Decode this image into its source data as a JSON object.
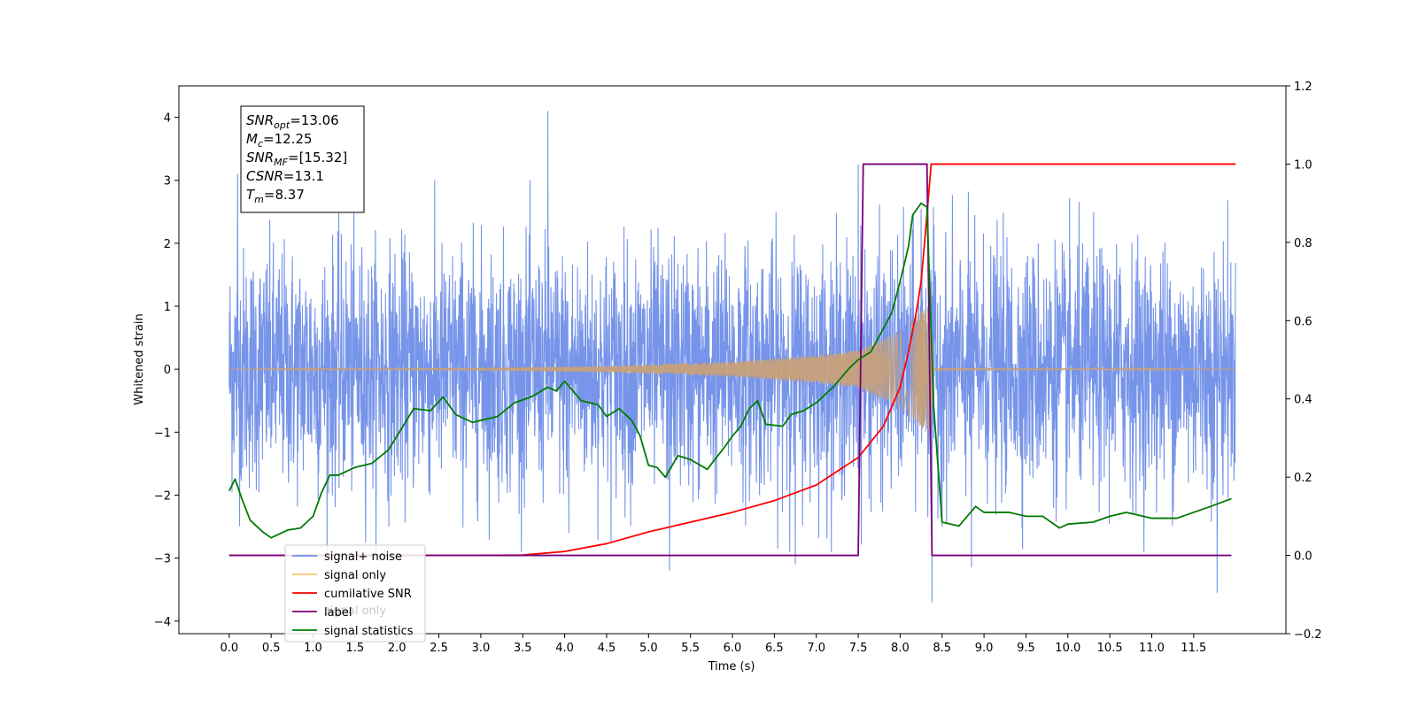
{
  "chart_data": {
    "type": "line",
    "xlabel": "Time (s)",
    "ylabel": "Whitened strain",
    "xlim": [
      -0.6,
      12.6
    ],
    "ylim": [
      -4.2,
      4.5
    ],
    "y2lim": [
      -0.2,
      1.2
    ],
    "x_ticks": [
      "0.0",
      "0.5",
      "1.0",
      "1.5",
      "2.0",
      "2.5",
      "3.0",
      "3.5",
      "4.0",
      "4.5",
      "5.0",
      "5.5",
      "6.0",
      "6.5",
      "7.0",
      "7.5",
      "8.0",
      "8.5",
      "9.0",
      "9.5",
      "10.0",
      "10.5",
      "11.0",
      "11.5"
    ],
    "y_ticks": [
      "4",
      "3",
      "2",
      "1",
      "0",
      "−1",
      "−2",
      "−3",
      "−4"
    ],
    "y2_ticks": [
      "1.2",
      "1.0",
      "0.8",
      "0.6",
      "0.4",
      "0.2",
      "0.0",
      "−0.2"
    ],
    "annotation": {
      "lines": [
        {
          "sym": "SNR",
          "sub": "opt",
          "val": "=13.06"
        },
        {
          "sym": "M",
          "sub": "c",
          "val": "=12.25"
        },
        {
          "sym": "SNR",
          "sub": "MF",
          "val": "=[15.32]"
        },
        {
          "sym": "CSNR",
          "sub": "",
          "val": "=13.1"
        },
        {
          "sym": "T",
          "sub": "m",
          "val": "=8.37"
        }
      ]
    },
    "legend": {
      "placement": "lower-left",
      "entries": [
        {
          "label": "signal+ noise",
          "color": "#6f8ee8"
        },
        {
          "label": "signal only",
          "color": "#ffc46b"
        },
        {
          "label": "cumilative SNR",
          "color": "#ff0000"
        },
        {
          "label": "label",
          "color": "#7a007a"
        },
        {
          "label": "signal statistics",
          "color": "#007a00"
        }
      ],
      "hidden_text": "signal only"
    },
    "series": [
      {
        "name": "signal+ noise",
        "axis": "left",
        "color": "#6f8ee8",
        "t_start": 0.0,
        "t_end": 12.0,
        "noise_scale": 1.0,
        "spikes": [
          [
            0.1,
            3.1
          ],
          [
            3.8,
            4.1
          ],
          [
            4.05,
            3.7
          ],
          [
            4.05,
            -2.6
          ],
          [
            5.25,
            -3.2
          ],
          [
            6.75,
            -3.1
          ],
          [
            8.38,
            -3.7
          ],
          [
            8.85,
            -3.15
          ],
          [
            11.78,
            -3.55
          ],
          [
            7.5,
            3.25
          ],
          [
            8.25,
            2.55
          ]
        ]
      },
      {
        "name": "signal only",
        "axis": "left",
        "color": "#c7a07a",
        "t_start": 0.0,
        "t_end": 12.0,
        "chirp_end": 8.37,
        "envelope": [
          [
            0.0,
            0.0
          ],
          [
            3.0,
            0.02
          ],
          [
            4.5,
            0.05
          ],
          [
            6.0,
            0.12
          ],
          [
            7.0,
            0.22
          ],
          [
            7.5,
            0.3
          ],
          [
            8.0,
            0.6
          ],
          [
            8.2,
            0.85
          ],
          [
            8.3,
            1.0
          ],
          [
            8.37,
            1.0
          ],
          [
            8.4,
            0.02
          ],
          [
            12.0,
            0.0
          ]
        ]
      },
      {
        "name": "cumilative SNR",
        "axis": "right",
        "color": "#ff0000",
        "points": [
          [
            0.0,
            0.0
          ],
          [
            3.0,
            0.0
          ],
          [
            3.5,
            0.001
          ],
          [
            4.0,
            0.01
          ],
          [
            4.5,
            0.03
          ],
          [
            5.0,
            0.06
          ],
          [
            5.5,
            0.085
          ],
          [
            6.0,
            0.11
          ],
          [
            6.5,
            0.14
          ],
          [
            7.0,
            0.18
          ],
          [
            7.5,
            0.25
          ],
          [
            7.8,
            0.33
          ],
          [
            8.0,
            0.43
          ],
          [
            8.1,
            0.52
          ],
          [
            8.2,
            0.63
          ],
          [
            8.25,
            0.7
          ],
          [
            8.3,
            0.82
          ],
          [
            8.37,
            1.0
          ],
          [
            11.6,
            1.0
          ],
          [
            12.0,
            1.0
          ]
        ]
      },
      {
        "name": "label",
        "axis": "right",
        "color": "#7a007a",
        "points": [
          [
            0.0,
            0.0
          ],
          [
            7.5,
            0.0
          ],
          [
            7.56,
            1.0
          ],
          [
            8.32,
            1.0
          ],
          [
            8.38,
            0.0
          ],
          [
            11.95,
            0.0
          ]
        ]
      },
      {
        "name": "signal statistics",
        "axis": "right",
        "color": "#007a00",
        "points": [
          [
            0.0,
            0.165
          ],
          [
            0.07,
            0.195
          ],
          [
            0.15,
            0.145
          ],
          [
            0.25,
            0.09
          ],
          [
            0.4,
            0.06
          ],
          [
            0.5,
            0.045
          ],
          [
            0.7,
            0.065
          ],
          [
            0.85,
            0.07
          ],
          [
            1.0,
            0.1
          ],
          [
            1.1,
            0.16
          ],
          [
            1.2,
            0.205
          ],
          [
            1.3,
            0.205
          ],
          [
            1.5,
            0.225
          ],
          [
            1.7,
            0.235
          ],
          [
            1.9,
            0.27
          ],
          [
            2.1,
            0.34
          ],
          [
            2.2,
            0.375
          ],
          [
            2.4,
            0.37
          ],
          [
            2.55,
            0.405
          ],
          [
            2.7,
            0.36
          ],
          [
            2.9,
            0.34
          ],
          [
            3.0,
            0.345
          ],
          [
            3.2,
            0.355
          ],
          [
            3.4,
            0.39
          ],
          [
            3.6,
            0.405
          ],
          [
            3.8,
            0.43
          ],
          [
            3.9,
            0.42
          ],
          [
            4.0,
            0.445
          ],
          [
            4.2,
            0.395
          ],
          [
            4.4,
            0.385
          ],
          [
            4.5,
            0.355
          ],
          [
            4.65,
            0.375
          ],
          [
            4.8,
            0.345
          ],
          [
            4.9,
            0.305
          ],
          [
            5.0,
            0.23
          ],
          [
            5.1,
            0.225
          ],
          [
            5.2,
            0.2
          ],
          [
            5.35,
            0.255
          ],
          [
            5.5,
            0.245
          ],
          [
            5.7,
            0.22
          ],
          [
            5.9,
            0.275
          ],
          [
            6.0,
            0.305
          ],
          [
            6.1,
            0.33
          ],
          [
            6.2,
            0.375
          ],
          [
            6.3,
            0.395
          ],
          [
            6.4,
            0.335
          ],
          [
            6.6,
            0.33
          ],
          [
            6.7,
            0.36
          ],
          [
            6.85,
            0.37
          ],
          [
            7.0,
            0.39
          ],
          [
            7.2,
            0.43
          ],
          [
            7.4,
            0.48
          ],
          [
            7.5,
            0.5
          ],
          [
            7.65,
            0.52
          ],
          [
            7.8,
            0.58
          ],
          [
            7.9,
            0.62
          ],
          [
            8.0,
            0.7
          ],
          [
            8.1,
            0.79
          ],
          [
            8.15,
            0.87
          ],
          [
            8.25,
            0.9
          ],
          [
            8.32,
            0.89
          ],
          [
            8.4,
            0.38
          ],
          [
            8.5,
            0.085
          ],
          [
            8.7,
            0.075
          ],
          [
            8.9,
            0.125
          ],
          [
            9.0,
            0.11
          ],
          [
            9.3,
            0.11
          ],
          [
            9.5,
            0.1
          ],
          [
            9.7,
            0.1
          ],
          [
            9.9,
            0.07
          ],
          [
            10.0,
            0.08
          ],
          [
            10.3,
            0.085
          ],
          [
            10.5,
            0.1
          ],
          [
            10.7,
            0.11
          ],
          [
            11.0,
            0.095
          ],
          [
            11.3,
            0.095
          ],
          [
            11.5,
            0.11
          ],
          [
            11.7,
            0.125
          ],
          [
            11.95,
            0.145
          ]
        ]
      }
    ]
  }
}
